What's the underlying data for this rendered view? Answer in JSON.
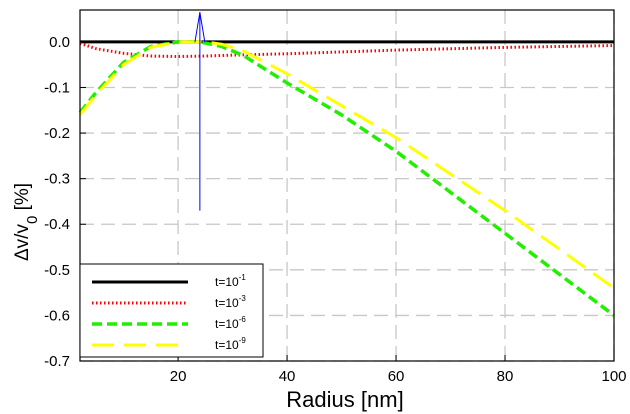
{
  "chart_data": {
    "type": "line",
    "xlabel": "Radius [nm]",
    "ylabel": {
      "main": "Δv/v",
      "sub": "0",
      "tail": " [%]"
    },
    "xlim": [
      2,
      100
    ],
    "ylim": [
      -0.7,
      0.07
    ],
    "x_ticks": [
      20,
      40,
      60,
      80,
      100
    ],
    "y_ticks": [
      0.0,
      -0.1,
      -0.2,
      -0.3,
      -0.4,
      -0.5,
      -0.6,
      -0.7
    ],
    "x_tick_labels": [
      "20",
      "40",
      "60",
      "80",
      "100"
    ],
    "y_tick_labels": [
      "0.0",
      "-0.1",
      "-0.2",
      "-0.3",
      "-0.4",
      "-0.5",
      "-0.6",
      "-0.7"
    ],
    "grid": true,
    "legend_position": "bottom-left",
    "series": [
      {
        "base": "t=10",
        "exp": "-1",
        "color": "#000000",
        "style": "solid",
        "x": [
          2,
          100
        ],
        "y": [
          0.0,
          0.0
        ]
      },
      {
        "base": "t=10",
        "exp": "-3",
        "color": "#ff0000",
        "style": "dotted",
        "x": [
          2,
          5,
          10,
          15,
          20,
          25,
          30,
          40,
          50,
          60,
          70,
          80,
          90,
          100
        ],
        "y": [
          -0.003,
          -0.015,
          -0.025,
          -0.031,
          -0.032,
          -0.031,
          -0.029,
          -0.026,
          -0.022,
          -0.018,
          -0.015,
          -0.012,
          -0.01,
          -0.008
        ]
      },
      {
        "base": "t=10",
        "exp": "-6",
        "color": "#22ee00",
        "style": "dashed",
        "x": [
          2,
          5,
          10,
          15,
          20,
          24,
          28,
          32,
          40,
          50,
          60,
          70,
          80,
          90,
          100
        ],
        "y": [
          -0.155,
          -0.11,
          -0.045,
          -0.01,
          0.0,
          0.0,
          -0.01,
          -0.03,
          -0.09,
          -0.16,
          -0.24,
          -0.33,
          -0.42,
          -0.51,
          -0.6
        ]
      },
      {
        "base": "t=10",
        "exp": "-9",
        "color": "#ffff00",
        "style": "longdash",
        "x": [
          2,
          5,
          10,
          15,
          20,
          25,
          28,
          32,
          40,
          50,
          60,
          70,
          80,
          90,
          100
        ],
        "y": [
          -0.16,
          -0.115,
          -0.05,
          -0.012,
          0.0,
          0.0,
          -0.005,
          -0.02,
          -0.07,
          -0.14,
          -0.21,
          -0.29,
          -0.37,
          -0.455,
          -0.54
        ]
      }
    ],
    "annotation_arrow": {
      "x": 24,
      "y_from": -0.37,
      "y_to": 0.065,
      "color": "#0000ff"
    }
  }
}
